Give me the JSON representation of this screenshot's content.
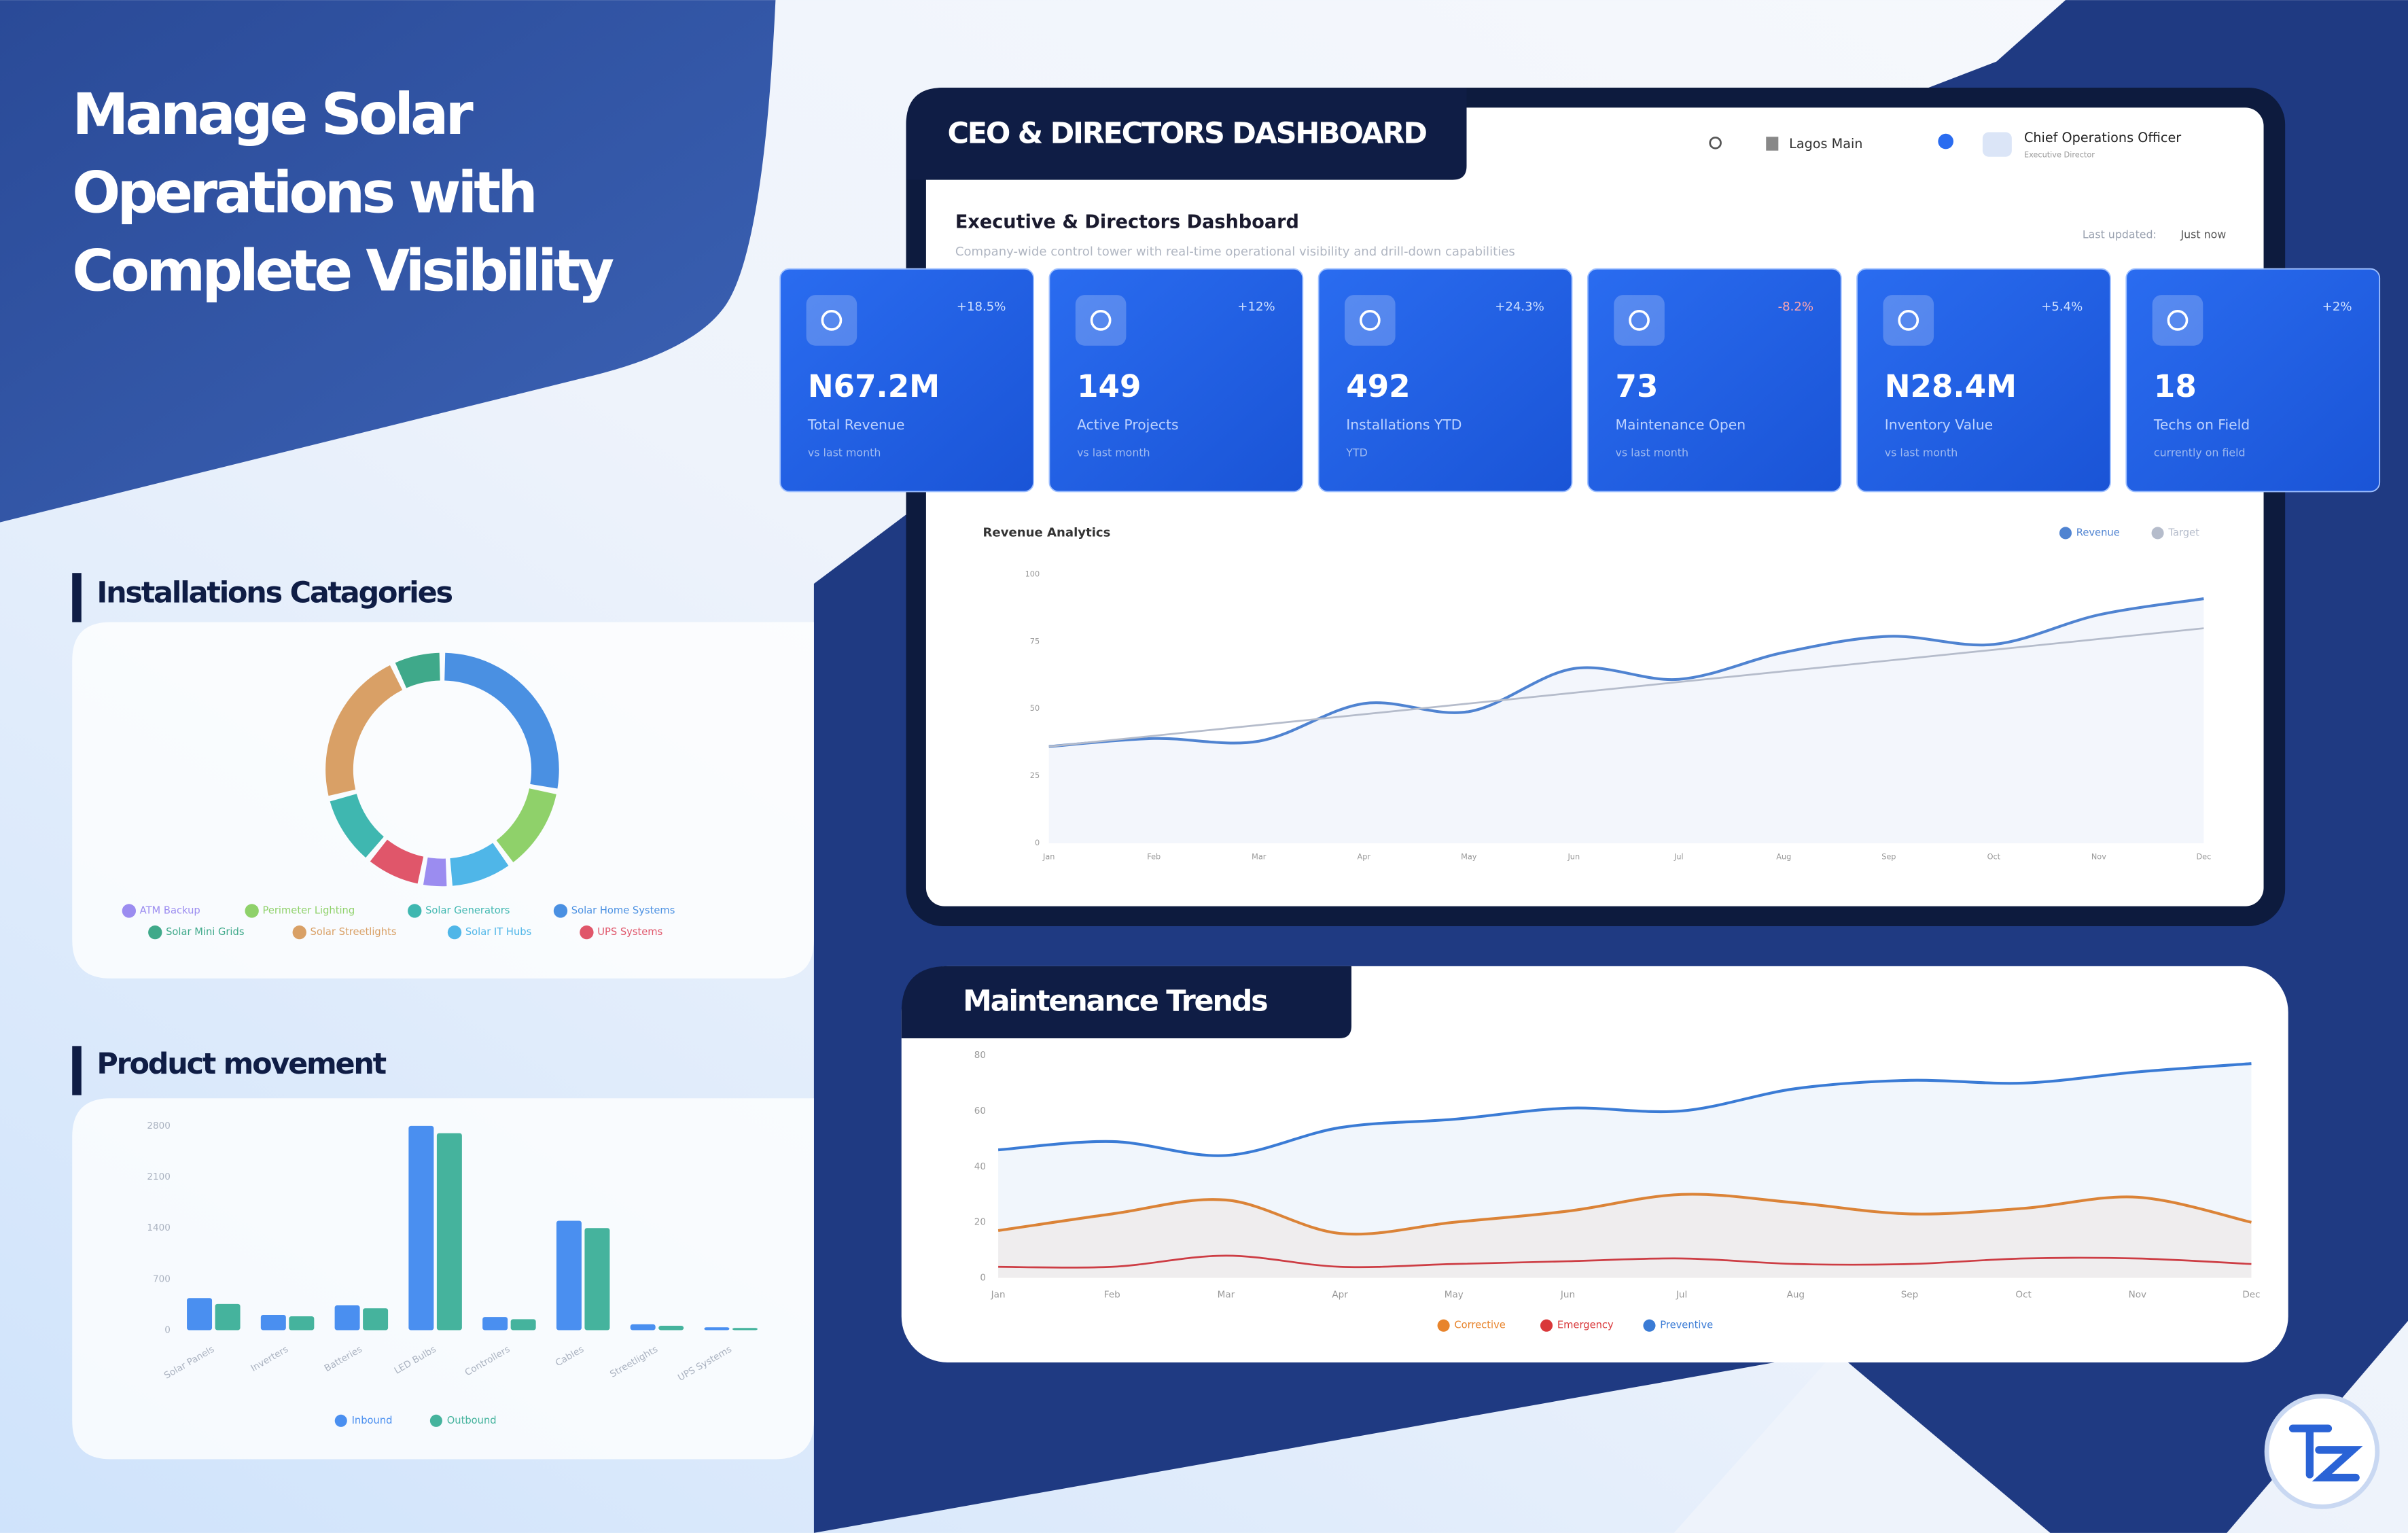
{
  "headline": {
    "lines": [
      "Manage Solar",
      "Operations with",
      "Complete Visibility"
    ]
  },
  "dashboard": {
    "tab_title": "CEO & DIRECTORS DASHBOARD",
    "location": "Lagos Main",
    "user_role": "Chief Operations Officer",
    "user_title": "Executive Director",
    "page_title": "Executive & Directors Dashboard",
    "page_subtitle": "Company-wide control tower with real-time operational visibility and drill-down capabilities",
    "last_updated_label": "Last updated:",
    "last_updated_value": "Just now",
    "kpis": [
      {
        "change": "+18.5%",
        "value": "N67.2M",
        "label": "Total Revenue",
        "note": "vs last month"
      },
      {
        "change": "+12%",
        "value": 149,
        "label": "Active Projects",
        "note": "vs last month"
      },
      {
        "change": "+24.3%",
        "value": 492,
        "label": "Installations YTD",
        "note": "YTD"
      },
      {
        "change": "-8.2%",
        "value": 73,
        "label": "Maintenance Open",
        "note": "vs last month"
      },
      {
        "change": "+5.4%",
        "value": "N28.4M",
        "label": "Inventory Value",
        "note": "vs last month"
      },
      {
        "change": "+2%",
        "value": 18,
        "label": "Techs on Field",
        "note": "currently on field"
      }
    ]
  },
  "chart_data": [
    {
      "type": "line",
      "title": "Revenue Analytics",
      "categories": [
        "Jan",
        "Feb",
        "Mar",
        "Apr",
        "May",
        "Jun",
        "Jul",
        "Aug",
        "Sep",
        "Oct",
        "Nov",
        "Dec"
      ],
      "series": [
        {
          "name": "Revenue",
          "color": "#4f83d1",
          "area": true,
          "values": [
            36,
            39,
            38,
            52,
            49,
            65,
            61,
            71,
            77,
            74,
            85,
            91
          ]
        },
        {
          "name": "Target",
          "color": "#b5bccb",
          "area": false,
          "values": [
            36,
            40,
            44,
            48,
            52,
            56,
            60,
            64,
            68,
            72,
            76,
            80
          ]
        }
      ],
      "ylim": [
        0,
        100
      ],
      "yticks": [
        0,
        25,
        50,
        75,
        100
      ],
      "grid": false
    },
    {
      "type": "pie",
      "title": "Installations Catagories",
      "donut": true,
      "categories": [
        "Solar Home Systems",
        "Perimeter Lighting",
        "Solar IT Hubs",
        "ATM Backup",
        "UPS Systems",
        "Solar Generators",
        "Solar Streetlights",
        "Solar Mini Grids"
      ],
      "values": [
        28,
        12,
        9,
        4,
        8,
        10,
        22,
        7
      ],
      "colors": [
        "#4a90e2",
        "#8fd16a",
        "#4fb6e8",
        "#9b8cf0",
        "#e0566a",
        "#3fb7b0",
        "#d9a066",
        "#3fa98a"
      ]
    },
    {
      "type": "bar",
      "title": "Product movement",
      "categories": [
        "Solar Panels",
        "Inverters",
        "Batteries",
        "LED Bulbs",
        "Controllers",
        "Cables",
        "Streetlights",
        "UPS Systems"
      ],
      "series": [
        {
          "name": "Inbound",
          "color": "#4a8ff0",
          "values": [
            440,
            210,
            340,
            2800,
            180,
            1500,
            80,
            40
          ]
        },
        {
          "name": "Outbound",
          "color": "#45b39d",
          "values": [
            360,
            190,
            300,
            2700,
            150,
            1400,
            60,
            30
          ]
        }
      ],
      "ylim": [
        0,
        2800
      ],
      "yticks": [
        0,
        700,
        1400,
        2100,
        2800
      ],
      "grid": false
    },
    {
      "type": "line",
      "title": "Maintenance Trends",
      "categories": [
        "Jan",
        "Feb",
        "Mar",
        "Apr",
        "May",
        "Jun",
        "Jul",
        "Aug",
        "Sep",
        "Oct",
        "Nov",
        "Dec"
      ],
      "series": [
        {
          "name": "Corrective",
          "color": "#e8842c",
          "area": true,
          "values": [
            17,
            23,
            28,
            16,
            20,
            24,
            30,
            27,
            23,
            25,
            29,
            20
          ]
        },
        {
          "name": "Emergency",
          "color": "#d9383a",
          "area": false,
          "values": [
            4,
            4,
            8,
            4,
            5,
            6,
            7,
            5,
            5,
            7,
            7,
            5
          ]
        },
        {
          "name": "Preventive",
          "color": "#3a7bd5",
          "area": true,
          "values": [
            46,
            49,
            44,
            54,
            57,
            61,
            60,
            68,
            71,
            70,
            74,
            77
          ]
        }
      ],
      "ylim": [
        0,
        80
      ],
      "yticks": [
        0,
        20,
        40,
        60,
        80
      ],
      "grid": false
    }
  ]
}
